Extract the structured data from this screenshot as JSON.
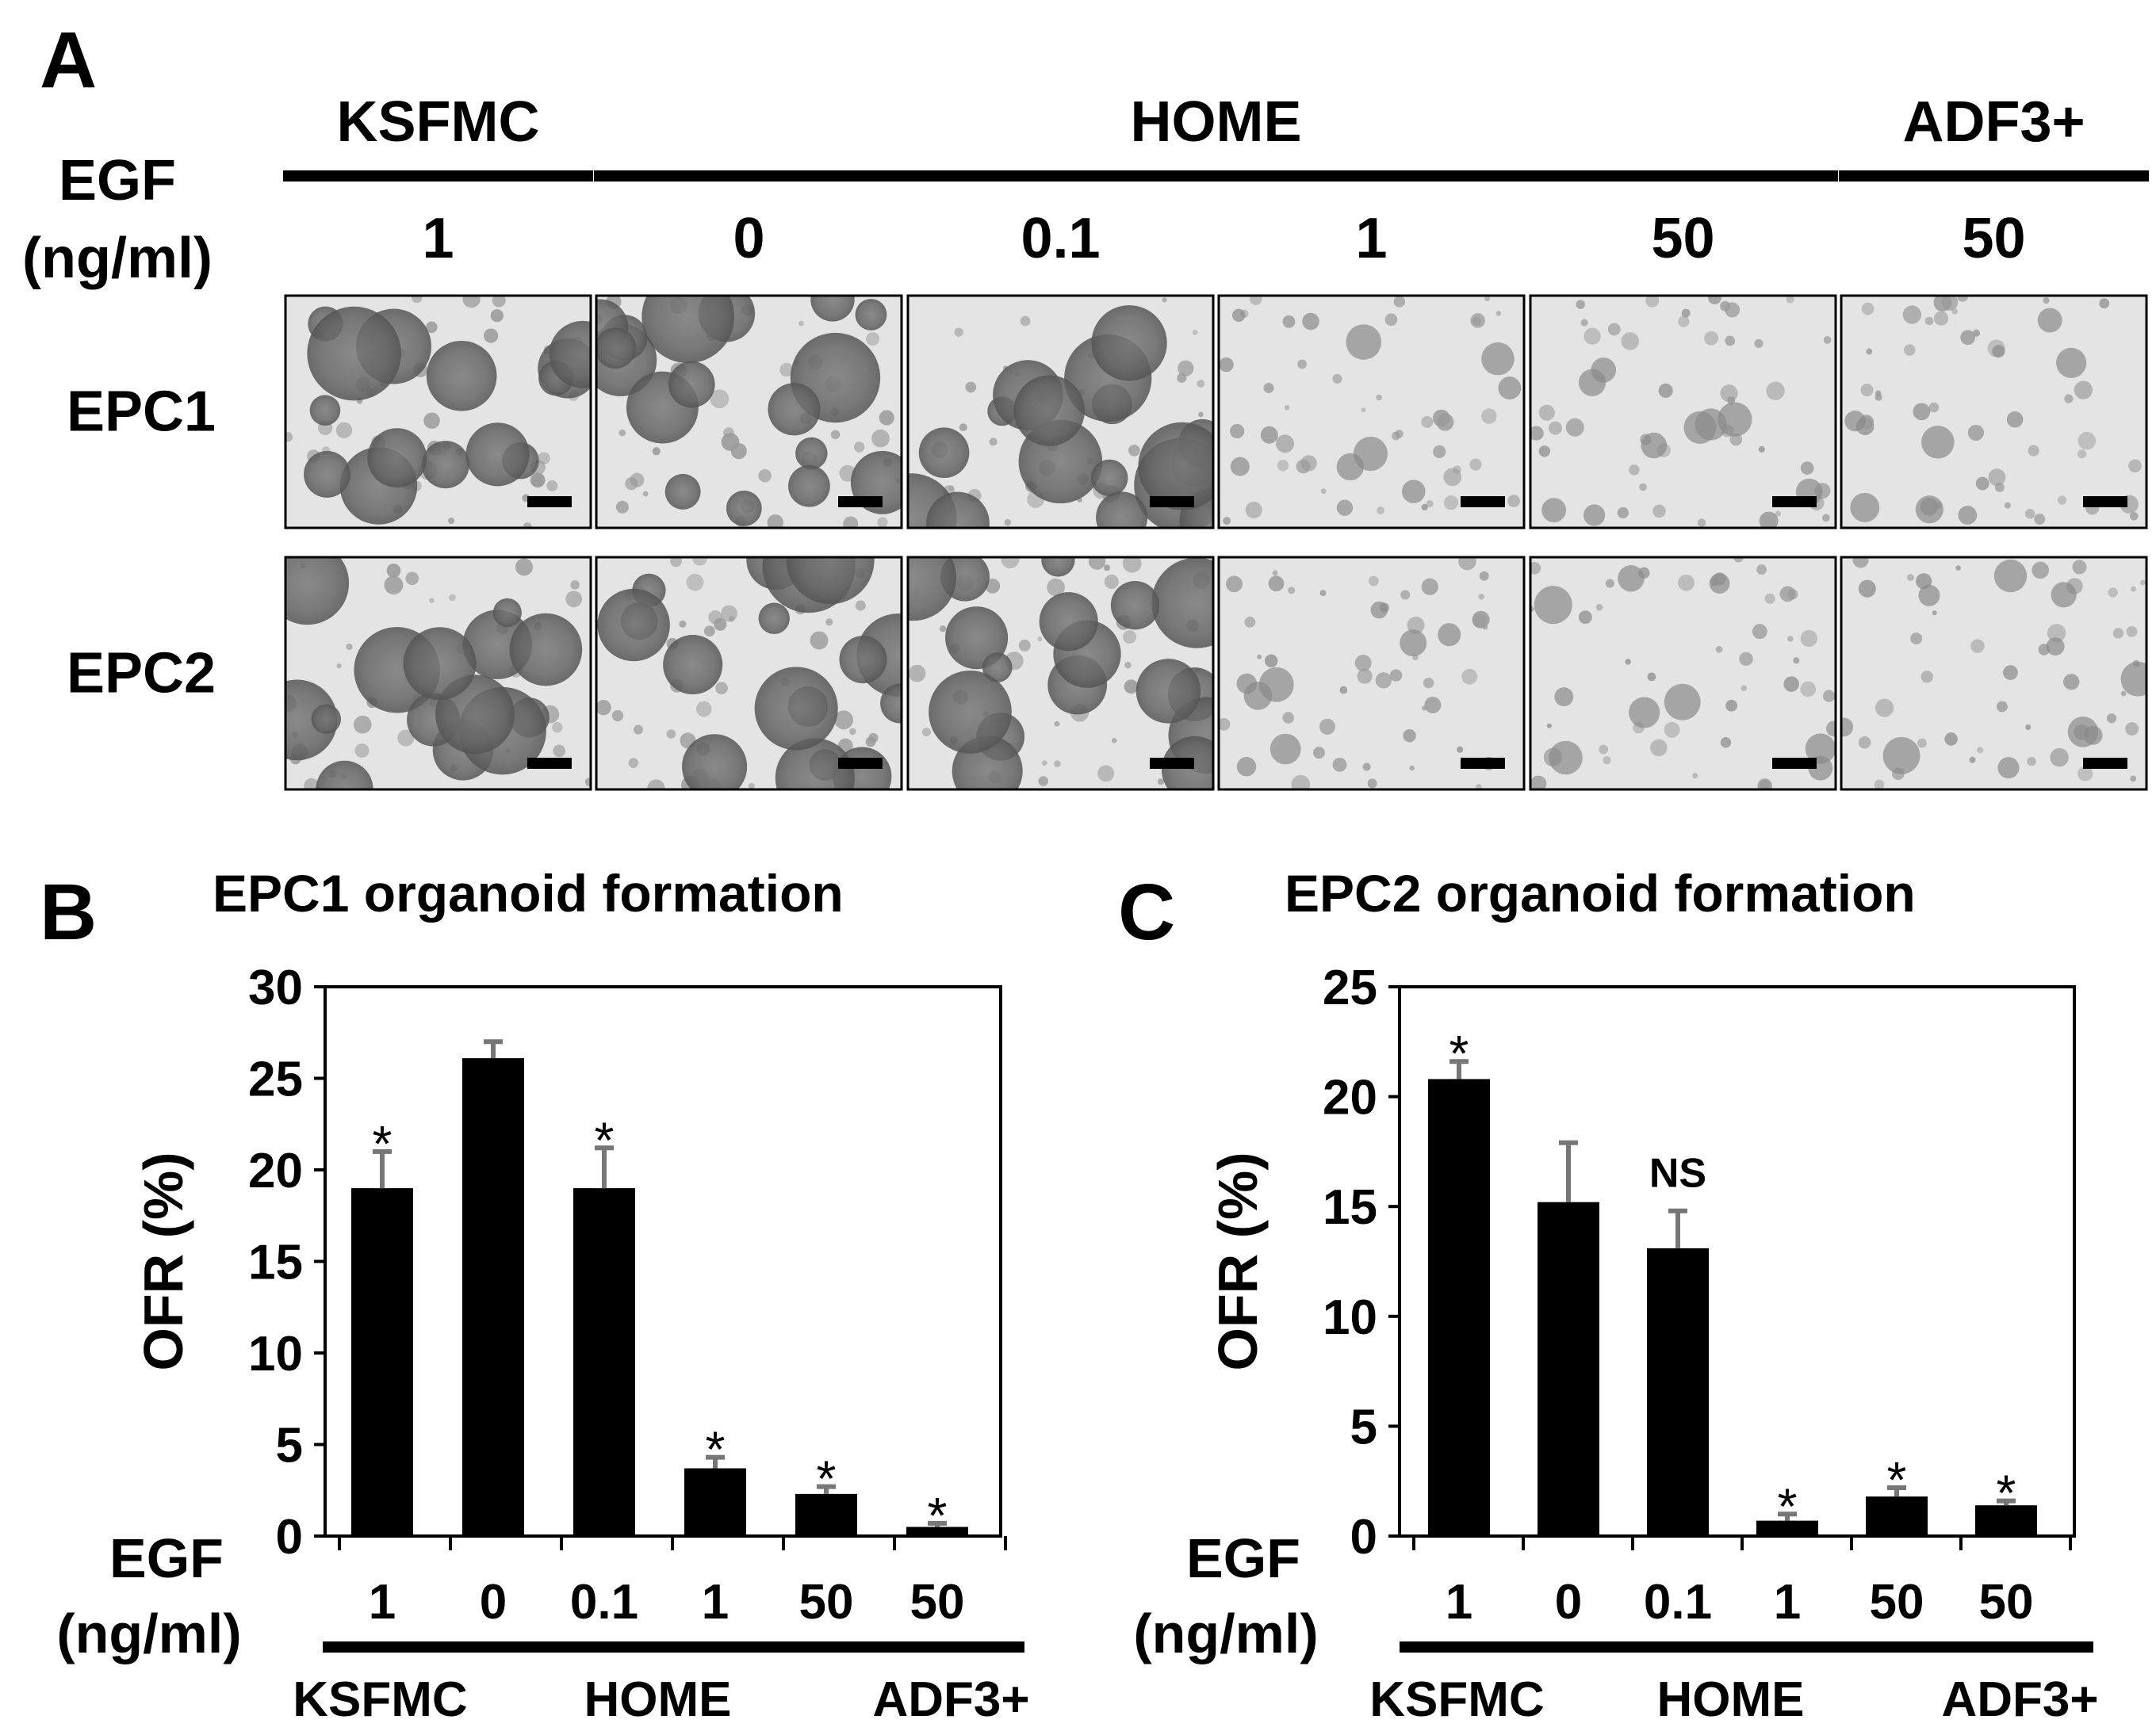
{
  "panel_a": {
    "letter": "A",
    "egf_label": [
      "EGF",
      "(ng/ml)"
    ],
    "groups": [
      {
        "name": "KSFMC",
        "start": 0,
        "end": 0
      },
      {
        "name": "HOME",
        "start": 1,
        "end": 4
      },
      {
        "name": "ADF3+",
        "start": 5,
        "end": 5
      }
    ],
    "doses": [
      "1",
      "0",
      "0.1",
      "1",
      "50",
      "50"
    ],
    "rows": [
      "EPC1",
      "EPC2"
    ],
    "tile_density": [
      [
        0.55,
        0.75,
        0.8,
        0.3,
        0.3,
        0.3
      ],
      [
        0.55,
        0.8,
        0.8,
        0.25,
        0.2,
        0.3
      ]
    ]
  },
  "chart_data": [
    {
      "type": "bar",
      "panel": "B",
      "title": "EPC1 organoid formation",
      "ylabel": "OFR (%)",
      "xlabel": [
        "EGF",
        "(ng/ml)"
      ],
      "categories": [
        "1",
        "0",
        "0.1",
        "1",
        "50",
        "50"
      ],
      "groups": [
        {
          "name": "KSFMC",
          "start": 0,
          "end": 0
        },
        {
          "name": "HOME",
          "start": 1,
          "end": 4
        },
        {
          "name": "ADF3+",
          "start": 5,
          "end": 5
        }
      ],
      "values": [
        19.0,
        26.1,
        19.0,
        3.7,
        2.3,
        0.5
      ],
      "errors": [
        2.0,
        0.9,
        2.2,
        0.6,
        0.4,
        0.2
      ],
      "annotations": [
        "*",
        "",
        "*",
        "*",
        "*",
        "*"
      ],
      "ylim": [
        0,
        30
      ],
      "yticks": [
        0,
        5,
        10,
        15,
        20,
        25,
        30
      ]
    },
    {
      "type": "bar",
      "panel": "C",
      "title": "EPC2 organoid formation",
      "ylabel": "OFR (%)",
      "xlabel": [
        "EGF",
        "(ng/ml)"
      ],
      "categories": [
        "1",
        "0",
        "0.1",
        "1",
        "50",
        "50"
      ],
      "groups": [
        {
          "name": "KSFMC",
          "start": 0,
          "end": 0
        },
        {
          "name": "HOME",
          "start": 1,
          "end": 4
        },
        {
          "name": "ADF3+",
          "start": 5,
          "end": 5
        }
      ],
      "values": [
        20.8,
        15.2,
        13.1,
        0.7,
        1.8,
        1.4
      ],
      "errors": [
        0.8,
        2.7,
        1.7,
        0.3,
        0.4,
        0.2
      ],
      "annotations": [
        "*",
        "",
        "NS",
        "*",
        "*",
        "*"
      ],
      "ylim": [
        0,
        25
      ],
      "yticks": [
        0,
        5,
        10,
        15,
        20,
        25
      ]
    }
  ]
}
